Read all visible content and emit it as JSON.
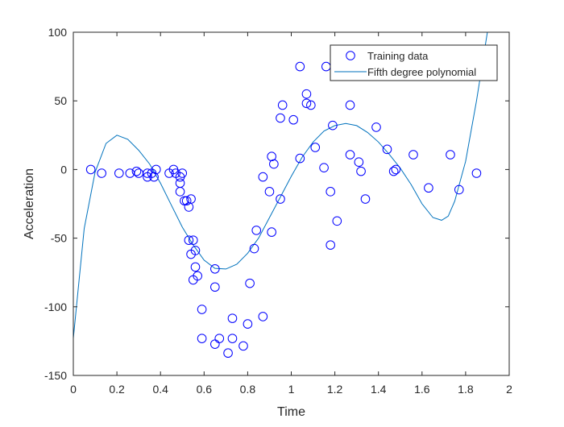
{
  "chart_data": {
    "type": "scatter",
    "title": "",
    "xlabel": "Time",
    "ylabel": "Acceleration",
    "xlim": [
      0,
      2
    ],
    "ylim": [
      -150,
      100
    ],
    "xticks": [
      0,
      0.2,
      0.4,
      0.6,
      0.8,
      1,
      1.2,
      1.4,
      1.6,
      1.8,
      2
    ],
    "yticks": [
      -150,
      -100,
      -50,
      0,
      50,
      100
    ],
    "xtick_labels": [
      "0",
      "0.2",
      "0.4",
      "0.6",
      "0.8",
      "1",
      "1.2",
      "1.4",
      "1.6",
      "1.8",
      "2"
    ],
    "ytick_labels": [
      "-150",
      "-100",
      "-50",
      "0",
      "50",
      "100"
    ],
    "grid": false,
    "legend": {
      "location": "top-right",
      "entries": [
        "Training data",
        "Fifth degree polynomial"
      ]
    },
    "series": [
      {
        "name": "Training data",
        "kind": "scatter",
        "marker": "circle-open",
        "color": "#0000ff",
        "points": [
          [
            0.08,
            0
          ],
          [
            0.13,
            -2.7
          ],
          [
            0.21,
            -2.7
          ],
          [
            0.26,
            -2.7
          ],
          [
            0.29,
            -1.3
          ],
          [
            0.3,
            -2.7
          ],
          [
            0.34,
            -2.7
          ],
          [
            0.34,
            -5.4
          ],
          [
            0.36,
            -2.7
          ],
          [
            0.37,
            -5.4
          ],
          [
            0.38,
            0
          ],
          [
            0.44,
            -2.7
          ],
          [
            0.46,
            0
          ],
          [
            0.47,
            -2.7
          ],
          [
            0.49,
            -5.4
          ],
          [
            0.49,
            -9.9
          ],
          [
            0.49,
            -16.1
          ],
          [
            0.5,
            -2.7
          ],
          [
            0.51,
            -22.8
          ],
          [
            0.52,
            -22.8
          ],
          [
            0.53,
            -27.3
          ],
          [
            0.53,
            -51.5
          ],
          [
            0.54,
            -21.5
          ],
          [
            0.54,
            -61.7
          ],
          [
            0.55,
            -51.5
          ],
          [
            0.55,
            -80.4
          ],
          [
            0.56,
            -59.0
          ],
          [
            0.56,
            -71.0
          ],
          [
            0.57,
            -77.5
          ],
          [
            0.59,
            -101.9
          ],
          [
            0.59,
            -123.1
          ],
          [
            0.65,
            -72.4
          ],
          [
            0.65,
            -85.6
          ],
          [
            0.65,
            -127.2
          ],
          [
            0.67,
            -123.1
          ],
          [
            0.71,
            -133.7
          ],
          [
            0.73,
            -108.4
          ],
          [
            0.73,
            -123.1
          ],
          [
            0.78,
            -128.5
          ],
          [
            0.8,
            -112.5
          ],
          [
            0.81,
            -82.9
          ],
          [
            0.83,
            -57.6
          ],
          [
            0.84,
            -44.3
          ],
          [
            0.87,
            -5.4
          ],
          [
            0.87,
            -107.1
          ],
          [
            0.9,
            -16.1
          ],
          [
            0.91,
            -45.6
          ],
          [
            0.91,
            9.5
          ],
          [
            0.92,
            4.0
          ],
          [
            0.95,
            -21.5
          ],
          [
            0.95,
            37.5
          ],
          [
            0.96,
            46.9
          ],
          [
            1.01,
            36.2
          ],
          [
            1.04,
            75.0
          ],
          [
            1.04,
            8.1
          ],
          [
            1.07,
            48.2
          ],
          [
            1.07,
            55.0
          ],
          [
            1.09,
            46.9
          ],
          [
            1.11,
            16.1
          ],
          [
            1.15,
            1.3
          ],
          [
            1.16,
            75.0
          ],
          [
            1.18,
            -16.1
          ],
          [
            1.18,
            -55.0
          ],
          [
            1.19,
            32.1
          ],
          [
            1.21,
            -37.5
          ],
          [
            1.27,
            46.9
          ],
          [
            1.27,
            10.8
          ],
          [
            1.31,
            5.4
          ],
          [
            1.32,
            -1.3
          ],
          [
            1.34,
            -21.5
          ],
          [
            1.39,
            30.8
          ],
          [
            1.44,
            14.7
          ],
          [
            1.47,
            -1.3
          ],
          [
            1.48,
            0
          ],
          [
            1.56,
            10.8
          ],
          [
            1.63,
            -13.4
          ],
          [
            1.73,
            10.8
          ],
          [
            1.77,
            -14.7
          ],
          [
            1.85,
            -2.7
          ]
        ]
      },
      {
        "name": "Fifth degree polynomial",
        "kind": "line",
        "color": "#0072bd",
        "points": [
          [
            0,
            -123
          ],
          [
            0.05,
            -43
          ],
          [
            0.1,
            -2
          ],
          [
            0.15,
            19
          ],
          [
            0.2,
            25
          ],
          [
            0.25,
            22
          ],
          [
            0.3,
            14
          ],
          [
            0.35,
            4
          ],
          [
            0.4,
            -10
          ],
          [
            0.45,
            -26
          ],
          [
            0.5,
            -42
          ],
          [
            0.55,
            -55
          ],
          [
            0.6,
            -66
          ],
          [
            0.65,
            -72
          ],
          [
            0.7,
            -72.5
          ],
          [
            0.75,
            -69
          ],
          [
            0.8,
            -61
          ],
          [
            0.85,
            -50
          ],
          [
            0.9,
            -35
          ],
          [
            0.95,
            -20
          ],
          [
            1.0,
            -5
          ],
          [
            1.05,
            9
          ],
          [
            1.1,
            20
          ],
          [
            1.15,
            28
          ],
          [
            1.2,
            32
          ],
          [
            1.25,
            33.5
          ],
          [
            1.3,
            32
          ],
          [
            1.35,
            27
          ],
          [
            1.4,
            20
          ],
          [
            1.45,
            11
          ],
          [
            1.5,
            1
          ],
          [
            1.55,
            -11
          ],
          [
            1.6,
            -25
          ],
          [
            1.65,
            -35
          ],
          [
            1.69,
            -37
          ],
          [
            1.72,
            -34
          ],
          [
            1.75,
            -23
          ],
          [
            1.8,
            6
          ],
          [
            1.85,
            50
          ],
          [
            1.9,
            100
          ]
        ]
      }
    ]
  }
}
